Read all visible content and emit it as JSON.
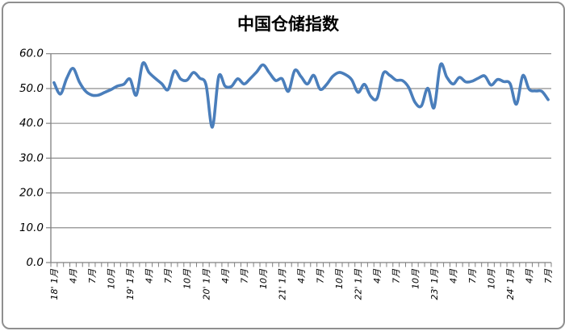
{
  "frame": {
    "background": "#ffffff",
    "border_color": "#8f8f8f"
  },
  "title": "中国仓储指数",
  "chart_data": {
    "type": "line",
    "title": "中国仓储指数",
    "xlabel": "",
    "ylabel": "",
    "ylim": [
      0,
      60
    ],
    "ytick_step": 10,
    "ytick_labels": [
      "60.0",
      "50.0",
      "40.0",
      "30.0",
      "20.0",
      "10.0",
      "0.0"
    ],
    "grid": "horizontal",
    "legend_position": "none",
    "axis_color": "#808080",
    "n_points": 79,
    "x_unit": "month",
    "x_range_note": "monthly, Jan 2018 - Jul 2024",
    "x_label_interval": 3,
    "x_tick_labels": [
      "18' 1月",
      "4月",
      "7月",
      "10月",
      "19' 1月",
      "4月",
      "7月",
      "10月",
      "20' 1月",
      "4月",
      "7月",
      "10月",
      "21' 1月",
      "4月",
      "7月",
      "10月",
      "22' 1月",
      "4月",
      "7月",
      "10月",
      "23' 1月",
      "4月",
      "7月",
      "10月",
      "24' 1月",
      "4月",
      "7月"
    ],
    "series": [
      {
        "name": "中国仓储指数",
        "color": "#4A7EBB",
        "values": [
          51.7,
          48.4,
          52.9,
          55.8,
          51.9,
          49.2,
          48.1,
          48.1,
          48.9,
          49.7,
          50.7,
          51.2,
          52.7,
          48.1,
          57.2,
          54.6,
          52.9,
          51.4,
          49.7,
          55.0,
          52.7,
          52.4,
          54.6,
          53.0,
          51.0,
          38.9,
          53.5,
          50.7,
          50.6,
          52.8,
          51.3,
          52.9,
          54.8,
          56.8,
          54.5,
          52.3,
          52.8,
          49.2,
          55.2,
          53.4,
          51.3,
          53.8,
          49.8,
          51.1,
          53.5,
          54.6,
          54.0,
          52.5,
          48.9,
          51.2,
          47.8,
          47.2,
          54.4,
          53.8,
          52.4,
          52.3,
          50.3,
          46.0,
          45.0,
          50.1,
          44.5,
          56.8,
          53.3,
          51.3,
          53.2,
          51.9,
          52.1,
          53.0,
          53.6,
          51.0,
          52.6,
          52.0,
          51.4,
          45.5,
          53.7,
          49.8,
          49.3,
          49.2,
          46.8
        ]
      }
    ]
  }
}
